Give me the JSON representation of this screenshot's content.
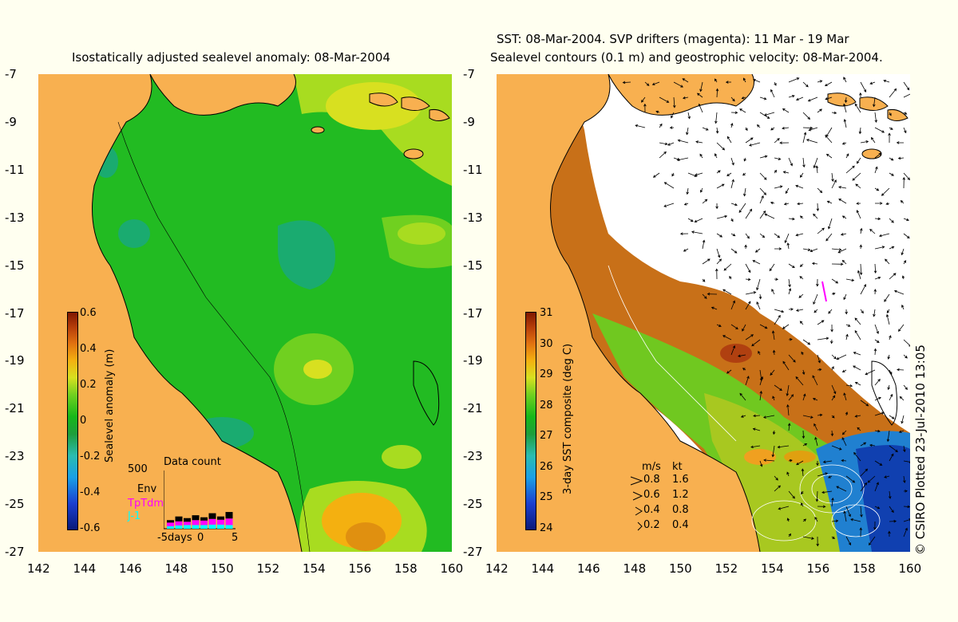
{
  "left": {
    "title": "Isostatically adjusted sealevel anomaly: 08-Mar-2004",
    "colorbar": {
      "label": "Sealevel anomaly (m)",
      "ticks": [
        "0.6",
        "0.4",
        "0.2",
        "0",
        "-0.2",
        "-0.4",
        "-0.6"
      ],
      "range": [
        -0.6,
        0.6
      ]
    },
    "inset": {
      "title": "Data count",
      "ymax": "500",
      "series": [
        "Env",
        "TpTdm",
        "J-1"
      ],
      "series_colors": [
        "#000000",
        "#ff00ff",
        "#00ffff"
      ],
      "xticks": [
        "-5days",
        "0",
        "5"
      ],
      "bars": {
        "Env": [
          30,
          60,
          45,
          60,
          40,
          70,
          40,
          80
        ],
        "TpTdm": [
          45,
          50,
          40,
          60,
          55,
          70,
          60,
          80
        ],
        "J-1": [
          30,
          40,
          45,
          45,
          45,
          50,
          50,
          45
        ]
      }
    }
  },
  "right": {
    "title1": "SST: 08-Mar-2004. SVP drifters (magenta): 11 Mar - 19 Mar",
    "title2": "Sealevel contours (0.1 m) and geostrophic velocity: 08-Mar-2004.",
    "colorbar": {
      "label": "3-day SST composite (deg C)",
      "ticks": [
        "31",
        "30",
        "29",
        "28",
        "27",
        "26",
        "25",
        "24"
      ],
      "range": [
        24,
        31
      ]
    },
    "velocity_key": {
      "header_ms": "m/s",
      "header_kt": "kt",
      "rows": [
        {
          "ms": "0.8",
          "kt": "1.6"
        },
        {
          "ms": "0.6",
          "kt": "1.2"
        },
        {
          "ms": "0.4",
          "kt": "0.8"
        },
        {
          "ms": "0.2",
          "kt": "0.4"
        }
      ]
    }
  },
  "axes": {
    "yticks": [
      "-7",
      "-9",
      "-11",
      "-13",
      "-15",
      "-17",
      "-19",
      "-21",
      "-23",
      "-25",
      "-27"
    ],
    "xticks": [
      "142",
      "144",
      "146",
      "148",
      "150",
      "152",
      "154",
      "156",
      "158",
      "160"
    ],
    "lon_range": [
      142,
      160
    ],
    "lat_range": [
      -27,
      -7
    ]
  },
  "credit": "© CSIRO Plotted 23-Jul-2010 13:05",
  "colors": {
    "land": "#f8b050",
    "ocean_base": "#22bb22",
    "missing": "#ffffff",
    "background": "#fffff0",
    "drifter": "#ff00ff"
  }
}
